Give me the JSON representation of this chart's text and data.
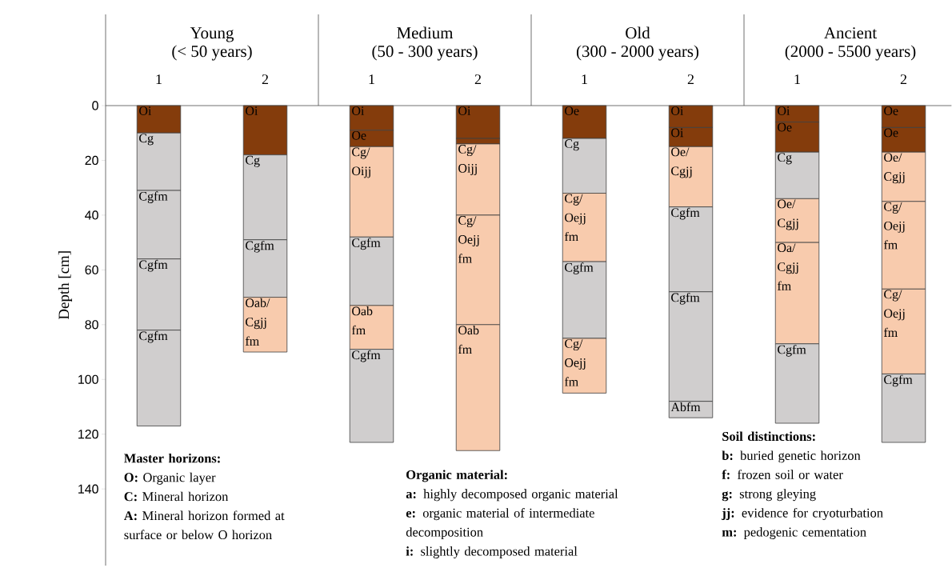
{
  "chart_data": {
    "type": "bar",
    "stacked": true,
    "ylabel": "Depth [cm]",
    "ylim": [
      168,
      0
    ],
    "yticks": [
      0,
      20,
      40,
      60,
      80,
      100,
      120,
      140
    ],
    "categories": [
      "1",
      "2",
      "1",
      "2",
      "1",
      "2",
      "1",
      "2"
    ],
    "series": [
      {
        "values": [
          10,
          18,
          9,
          12,
          12,
          8,
          6,
          8
        ],
        "colors": [
          "#843c0c",
          "#843c0c",
          "#843c0c",
          "#843c0c",
          "#843c0c",
          "#843c0c",
          "#843c0c",
          "#843c0c"
        ],
        "value_labels": [
          "Oi",
          "Oi",
          "Oi",
          "Oi",
          "Oe",
          "Oi",
          "Oi",
          "Oe"
        ]
      },
      {
        "values": [
          21,
          31,
          6,
          2,
          20,
          7,
          11,
          9
        ],
        "colors": [
          "#d0cece",
          "#d0cece",
          "#843c0c",
          "#843c0c",
          "#d0cece",
          "#843c0c",
          "#843c0c",
          "#843c0c"
        ],
        "value_labels": [
          "Cg",
          "Cg",
          "Oe",
          null,
          "Cg",
          "Oi",
          "Oe",
          "Oe"
        ]
      },
      {
        "values": [
          25,
          21,
          33,
          26,
          25,
          22,
          17,
          18
        ],
        "colors": [
          "#d0cece",
          "#d0cece",
          "#f8cbad",
          "#f8cbad",
          "#f8cbad",
          "#f8cbad",
          "#d0cece",
          "#f8cbad"
        ],
        "value_labels": [
          "Cgfm",
          "Cgfm",
          "Cg/ Oijj",
          "Cg/ Oijj",
          "Cg/ Oejj fm",
          "Oe/ Cgjj",
          "Cg",
          "Oe/ Cgjj"
        ]
      },
      {
        "values": [
          26,
          20,
          25,
          40,
          28,
          31,
          16,
          32
        ],
        "colors": [
          "#d0cece",
          "#f8cbad",
          "#d0cece",
          "#f8cbad",
          "#d0cece",
          "#d0cece",
          "#f8cbad",
          "#f8cbad"
        ],
        "value_labels": [
          "Cgfm",
          "Oab/ Cgjj fm",
          "Cgfm",
          "Cg/ Oejj fm",
          "Cgfm",
          "Cgfm",
          "Oe/ Cgjj",
          "Cg/ Oejj fm"
        ]
      },
      {
        "values": [
          35,
          null,
          16,
          46,
          20,
          40,
          37,
          31
        ],
        "colors": [
          "#d0cece",
          null,
          "#f8cbad",
          "#f8cbad",
          "#f8cbad",
          "#d0cece",
          "#f8cbad",
          "#f8cbad"
        ],
        "value_labels": [
          "Cgfm",
          null,
          "Oab fm",
          "Oab fm",
          "Cg/ Oejj fm",
          "Cgfm",
          "Oa/ Cgjj fm",
          "Cg/ Oejj fm"
        ]
      },
      {
        "values": [
          null,
          null,
          34,
          null,
          null,
          6,
          29,
          25
        ],
        "colors": [
          null,
          null,
          "#d0cece",
          null,
          null,
          "#d0cece",
          "#d0cece",
          "#d0cece"
        ],
        "value_labels": [
          null,
          null,
          "Cgfm",
          null,
          null,
          "Abfm",
          "Cgfm",
          "Cgfm"
        ]
      }
    ],
    "annotations": [
      "Young",
      "(< 50 years)",
      "Medium",
      "(50 - 300 years)",
      "Old",
      "(300 - 2000 years)",
      "Ancient",
      "(2000 - 5500 years)",
      "**Master horizons:**",
      "**O:** Organic layer",
      "**C:** Mineral horizon",
      "**A:** Mineral horizon formed at surface or below O horizon",
      "**Organic material:**",
      "**a:** highly decomposed organic material",
      "**e:** organic material of intermediate decomposition",
      "**i:** slightly decomposed material",
      "**Soil distinctions:**",
      "**b:** buried genetic horizon",
      "**f:** frozen soil or water",
      "**g:** strong gleying",
      "**jj:** evidence for cryoturbation",
      "**m:** pedogenic cementation"
    ]
  }
}
